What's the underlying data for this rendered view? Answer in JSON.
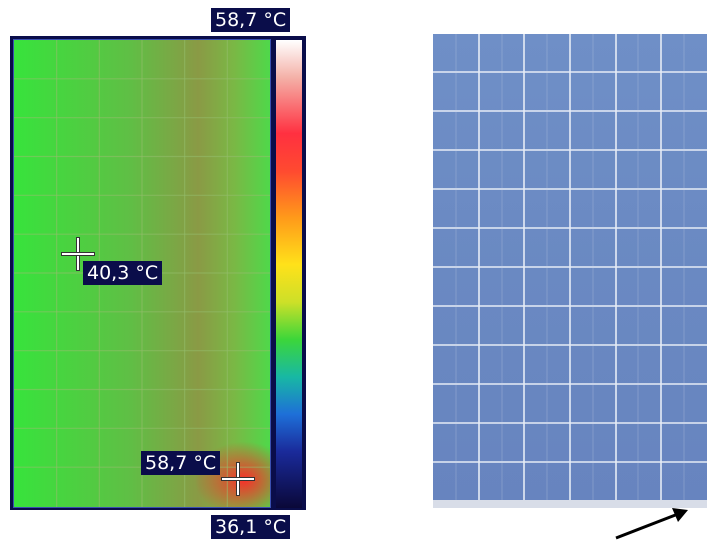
{
  "thermal": {
    "max_scale_label": "58,7 °C",
    "min_scale_label": "36,1 °C",
    "spot1_label": "40,3 °C",
    "spot2_label": "58,7 °C"
  },
  "photo": {
    "grid_columns": 6,
    "grid_rows": 12
  },
  "colors": {
    "panel_green": "#37e33c",
    "hotspot_red": "#ff2828",
    "cell_blue": "#6e8fc6",
    "label_bg": "#0a0d4a"
  }
}
